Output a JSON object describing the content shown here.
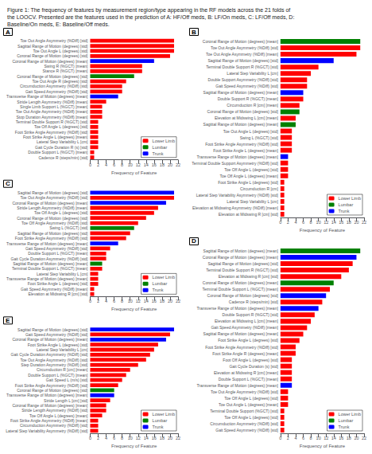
{
  "title": "Figure 1: The frequency of features by measurement region/type appearing in the RF models across the 21 folds of\nthe LOOCV. Presented are the features used in the prediction of A: HF/Off meds, B: LF/On meds, C: LF/Off meds, D:\nBaseline/On meds, E: Baseline/Off meds.",
  "chart_data": [
    {
      "type": "bar",
      "orientation": "horizontal",
      "stacked": true,
      "grid": false,
      "legend": "lower right",
      "title": "A",
      "xlabel": "Frequency of Feature",
      "xlim": [
        0,
        22
      ],
      "xticks": [
        0,
        2,
        4,
        6,
        8,
        10,
        12,
        14,
        16,
        18,
        20,
        22
      ],
      "categories": [
        "Toe Out Angle Asymmetry (%Diff) [std]",
        "Sagittal Range of Motion (degrees) [std]",
        "Toe Out Angle L (degrees) [std]",
        "Coronal Range of Motion (degrees) [std]",
        "Coronal Range of Motion (degrees) [mean]",
        "Swing R (%GCT) [mean]",
        "Stance R (%GCT) [mean]",
        "Coronal Range of Motion (degrees) [std]",
        "Toe Out Angle R (degrees) [std]",
        "Circumduction Asymmetry (%Diff) [std]",
        "Gait Speed Asymmetry (%Diff) [std]",
        "Transverse Range of Motion (degrees) [mean]",
        "Stride Length Asymmetry (%Diff) [mean]",
        "Single Limb Support L (%GCT) [mean]",
        "Toe Out Angle Asymmetry (%Diff) [mean]",
        "Stop Duration Asymmetry (%Diff) [mean]",
        "Terminal Double Support R (%GCT) [std]",
        "Toe Off Angle L (degrees) [std]",
        "Foot Strike Angle Asymmetry (%Diff) [std]",
        "Foot Strike Angle L (degrees) [mean]",
        "Lateral Step Variability L [cm]",
        "Gait Cycle Duration R (s) [std]",
        "Double Support L (%GCT) [mean]",
        "Cadence R (steps/min) [std]"
      ],
      "series": [
        {
          "name": "Lower Limb",
          "color": "#FF0000",
          "values": [
            21,
            21,
            21,
            20,
            null,
            13,
            13,
            null,
            9,
            8,
            8,
            null,
            4,
            3,
            3,
            3,
            2,
            2,
            2,
            2,
            2,
            2,
            1,
            1
          ]
        },
        {
          "name": "Lumbar",
          "color": "#008000",
          "values": [
            null,
            null,
            null,
            null,
            null,
            null,
            null,
            11,
            null,
            null,
            null,
            null,
            null,
            null,
            null,
            null,
            null,
            null,
            null,
            null,
            null,
            null,
            null,
            null
          ]
        },
        {
          "name": "Trunk",
          "color": "#0000FF",
          "values": [
            null,
            null,
            null,
            null,
            16,
            null,
            null,
            null,
            null,
            null,
            null,
            7,
            null,
            null,
            null,
            null,
            null,
            null,
            null,
            null,
            null,
            null,
            null,
            null
          ]
        }
      ]
    },
    {
      "type": "bar",
      "orientation": "horizontal",
      "stacked": true,
      "grid": false,
      "legend": "lower right",
      "title": "B",
      "xlabel": "Frequency of Feature",
      "xlim": [
        0,
        22
      ],
      "xticks": [
        0,
        2,
        4,
        6,
        8,
        10,
        12,
        14,
        16,
        18,
        20,
        22
      ],
      "categories": [
        "Coronal Range of Motion (degrees) [mean]",
        "Toe Out Angle Asymmetry (%Diff) [std]",
        "Toe Out Angle Asymmetry (%Diff) [mean]",
        "Sagittal Range of Motion (degrees) [std]",
        "Terminal Double Support R (%GCT) [std]",
        "Lateral Step Variability L [cm]",
        "Double Support Asymmetry (%Diff) [std]",
        "Gait Speed Asymmetry (%Diff) [std]",
        "Sagittal Range of Motion (degrees) [mean]",
        "Double Support R (%GCT) [mean]",
        "Circumduction R [cm] [mean]",
        "Coronal Range of Motion (degrees) [std]",
        "Elevation at Midswing L [cm] [mean]",
        "Sagittal Range of Motion (degrees) [mean]",
        "Toe Out Angle L (degrees) [std]",
        "Swing L (%GCT) [std]",
        "Foot Strike Angle Asymmetry (%Diff) [std]",
        "Foot Strike Angle L (degrees) [mean]",
        "Transverse Range of Motion (degrees) [mean]",
        "Terminal Double Support Asymmetry (%Diff) [std]",
        "Toe Off Angle L (degrees) [std]",
        "Toe Off Angle L (degrees) [mean]",
        "Foot Strike Angle L (degrees) [std]",
        "Circumduction R [cm]",
        "Lateral Step Variability Asymmetry (%Diff) [std]",
        "Lateral Step Variability L [cm]",
        "Elevation at Midswing Asymmetry (%Diff) [mean]",
        "Elevation at Midswing R [cm] [std]"
      ],
      "series": [
        {
          "name": "Lower Limb",
          "color": "#FF0000",
          "values": [
            null,
            21,
            20,
            null,
            10,
            8,
            7,
            7,
            null,
            6,
            5,
            null,
            4,
            null,
            3,
            3,
            3,
            3,
            null,
            2,
            2,
            2,
            1,
            1,
            1,
            1,
            1,
            1
          ]
        },
        {
          "name": "Lumbar",
          "color": "#008000",
          "values": [
            21,
            null,
            null,
            null,
            null,
            null,
            null,
            null,
            null,
            null,
            null,
            5,
            null,
            4,
            null,
            null,
            null,
            null,
            null,
            null,
            null,
            null,
            null,
            null,
            null,
            null,
            null,
            null
          ]
        },
        {
          "name": "Trunk",
          "color": "#0000FF",
          "values": [
            null,
            null,
            null,
            14,
            null,
            null,
            null,
            null,
            6,
            null,
            null,
            null,
            null,
            null,
            null,
            null,
            null,
            null,
            2,
            null,
            null,
            null,
            null,
            null,
            null,
            null,
            null,
            null
          ]
        }
      ]
    },
    {
      "type": "bar",
      "orientation": "horizontal",
      "stacked": true,
      "grid": false,
      "legend": "lower right",
      "title": "C",
      "xlabel": "Frequency of Feature",
      "xlim": [
        0,
        22
      ],
      "xticks": [
        0,
        2,
        4,
        6,
        8,
        10,
        12,
        14,
        16,
        18,
        20,
        22
      ],
      "categories": [
        "Sagittal Range of Motion (degrees) [std]",
        "Toe Out Angle Asymmetry (%Diff) [std]",
        "Coronal Range of Motion (degrees) [mean]",
        "Stride Length Asymmetry (%Diff) [mean]",
        "Toe Off Angle L (degrees) [std]",
        "Coronal Range of Motion (degrees) [std]",
        "Toe Off Angle Asymmetry (%Diff) [std]",
        "Swing L (%GCT) [std]",
        "Sagittal Range of Motion (degrees) [std]",
        "Foot Strike Angle Asymmetry (%Diff) [std]",
        "Transverse Range of Motion (degrees) [mean]",
        "Gait Speed Asymmetry (%Diff) [std]",
        "Double Support L (%GCT) [mean]",
        "Gait Cycle Duration Asymmetry (%Diff) [std]",
        "Sagittal Range of Motion (degrees) [mean]",
        "Terminal Double Support L (%GCT) [mean]",
        "Lateral Step Variability L [cm]",
        "Transverse Range of Motion (degrees) [mean]",
        "Foot Strike Angle L (degrees) [std]",
        "Gait Speed Asymmetry (%Diff) [mean]",
        "Elevation at Midswing R [cm] [std]"
      ],
      "series": [
        {
          "name": "Lower Limb",
          "color": "#FF0000",
          "values": [
            null,
            21,
            null,
            17,
            16,
            14,
            12,
            null,
            10,
            9,
            null,
            5,
            4,
            4,
            null,
            3,
            2,
            2,
            2,
            1,
            1
          ]
        },
        {
          "name": "Lumbar",
          "color": "#008000",
          "values": [
            null,
            null,
            null,
            null,
            null,
            null,
            null,
            11,
            null,
            null,
            null,
            null,
            null,
            null,
            3,
            null,
            null,
            null,
            null,
            null,
            null
          ]
        },
        {
          "name": "Trunk",
          "color": "#0000FF",
          "values": [
            21,
            null,
            19,
            null,
            null,
            null,
            null,
            null,
            null,
            null,
            7,
            null,
            null,
            null,
            null,
            null,
            null,
            null,
            null,
            null,
            null
          ]
        }
      ]
    },
    {
      "type": "bar",
      "orientation": "horizontal",
      "stacked": true,
      "grid": false,
      "legend": "lower right",
      "title": "D",
      "xlabel": "Frequency of Feature",
      "xlim": [
        0,
        22
      ],
      "xticks": [
        0,
        2,
        4,
        6,
        8,
        10,
        12,
        14,
        16,
        18,
        20,
        22
      ],
      "categories": [
        "Sagittal Range of Motion (degrees) [mean]",
        "Coronal Range of Motion (degrees) [mean]",
        "Sagittal Range of Motion (degrees) [std]",
        "Terminal Double Support R (%GCT) [std]",
        "Elevation at Midswing R [cm] [std]",
        "Coronal Range of Motion (degrees) [mean]",
        "Terminal Double Support L (%GCT) [mean]",
        "Coronal Range of Motion (degrees) [std]",
        "Cadence R (steps/min) [std]",
        "Transverse Range of Motion (degrees) [mean]",
        "Double Support R (%GCT) [std]",
        "Elevation at Midswing L [cm] [mean]",
        "Gait Speed Asymmetry (%Diff) [mean]",
        "Sagittal Range of Motion (degrees) [mean]",
        "Foot Strike Angle L (degrees) [std]",
        "Foot Strike Angle Asymmetry (%Diff) [std]",
        "Foot Strike Angle R (degrees) [mean]",
        "Foot Off Angle L (degrees) [std]",
        "Gait Cycle Duration (s) [std]",
        "Elevation at Midswing R [cm] [mean]",
        "Double Support L (%GCT) [mean]",
        "Transverse Range of Motion (degrees) [mean]",
        "Toe Out Angle Asymmetry (%Diff) [std]",
        "Toe Off Angle L (degrees) [std]",
        "Toe Out Angle L (degrees) [mean]",
        "Terminal Double Support (%GCT) [std]",
        "Toe Off Angle L (degrees) [std]",
        "Circumduction Asymmetry (%Diff) [std]",
        "Gait Speed Asymmetry (%Diff) [std]"
      ],
      "series": [
        {
          "name": "Lower Limb",
          "color": "#FF0000",
          "values": [
            null,
            null,
            19,
            18,
            16,
            null,
            13,
            null,
            11,
            null,
            9,
            8,
            7,
            6,
            5,
            4,
            4,
            3,
            3,
            3,
            3,
            null,
            2,
            2,
            2,
            1,
            1,
            1,
            1
          ]
        },
        {
          "name": "Lumbar",
          "color": "#008000",
          "values": [
            21,
            null,
            null,
            null,
            null,
            14,
            null,
            null,
            null,
            null,
            null,
            null,
            null,
            null,
            null,
            null,
            null,
            null,
            null,
            null,
            null,
            null,
            null,
            null,
            null,
            null,
            null,
            null,
            null
          ]
        },
        {
          "name": "Trunk",
          "color": "#0000FF",
          "values": [
            null,
            20,
            null,
            null,
            null,
            null,
            null,
            12,
            null,
            10,
            null,
            null,
            null,
            null,
            null,
            null,
            null,
            null,
            null,
            null,
            null,
            3,
            null,
            null,
            null,
            null,
            null,
            null,
            null
          ]
        }
      ]
    },
    {
      "type": "bar",
      "orientation": "horizontal",
      "stacked": true,
      "grid": false,
      "legend": "lower right",
      "title": "E",
      "xlabel": "Frequency of Feature",
      "xlim": [
        0,
        22
      ],
      "xticks": [
        0,
        2,
        4,
        6,
        8,
        10,
        12,
        14,
        16,
        18,
        20,
        22
      ],
      "categories": [
        "Sagittal Range of Motion (degrees) [std]",
        "Gait Speed Asymmetry (%Diff) [std]",
        "Coronal Range of Motion (degrees) [mean]",
        "Foot Strike Angle L (degrees) [std]",
        "Lateral Step Variability L [cm]",
        "Gait Cycle Duration Asymmetry (%Diff) [std]",
        "Toe Out Angle Asymmetry (%Diff) [std]",
        "Step Duration Asymmetry (%Diff) [std]",
        "Circumduction R [cm] [mean]",
        "Double Support L (%GCT) [mean]",
        "Gait Speed L (m/s) [std]",
        "Foot Strike Angle Asymmetry (%Diff) [std]",
        "Coronal Range of Motion (degrees) [std]",
        "Transverse Range of Motion (degrees) [mean]",
        "Stride Length L [cm] [std]",
        "Coronal Range of Motion (degrees) [mean]",
        "Stride Length Asymmetry (%Diff) [std]",
        "Toe Off Angle L (degrees) [mean]",
        "Foot Strike Angle Asymmetry (%Diff) [mean]",
        "Circumduction Asymmetry (%Diff) [std]",
        "Lateral Step Variability Asymmetry (%Diff) [std]"
      ],
      "series": [
        {
          "name": "Lower Limb",
          "color": "#FF0000",
          "values": [
            null,
            20,
            null,
            17,
            16,
            15,
            14,
            12,
            10,
            9,
            8,
            7,
            null,
            null,
            5,
            4,
            4,
            3,
            2,
            2,
            2
          ]
        },
        {
          "name": "Lumbar",
          "color": "#008000",
          "values": [
            null,
            null,
            null,
            null,
            null,
            null,
            null,
            null,
            null,
            null,
            null,
            null,
            6,
            null,
            null,
            null,
            null,
            null,
            null,
            null,
            null
          ]
        },
        {
          "name": "Trunk",
          "color": "#0000FF",
          "values": [
            21,
            null,
            19,
            null,
            null,
            null,
            null,
            null,
            null,
            null,
            null,
            null,
            null,
            6,
            null,
            null,
            null,
            null,
            null,
            null,
            null
          ]
        }
      ]
    }
  ]
}
